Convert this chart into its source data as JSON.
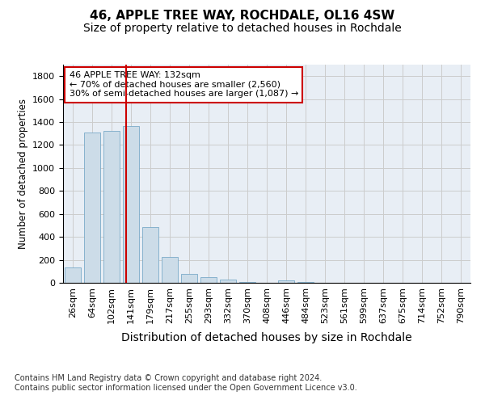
{
  "title1": "46, APPLE TREE WAY, ROCHDALE, OL16 4SW",
  "title2": "Size of property relative to detached houses in Rochdale",
  "xlabel": "Distribution of detached houses by size in Rochdale",
  "ylabel": "Number of detached properties",
  "categories": [
    "26sqm",
    "64sqm",
    "102sqm",
    "141sqm",
    "179sqm",
    "217sqm",
    "255sqm",
    "293sqm",
    "332sqm",
    "370sqm",
    "408sqm",
    "446sqm",
    "484sqm",
    "523sqm",
    "561sqm",
    "599sqm",
    "637sqm",
    "675sqm",
    "714sqm",
    "752sqm",
    "790sqm"
  ],
  "values": [
    135,
    1310,
    1320,
    1365,
    485,
    225,
    80,
    50,
    25,
    10,
    0,
    20,
    10,
    0,
    0,
    0,
    0,
    0,
    0,
    0,
    0
  ],
  "bar_color": "#ccdce8",
  "bar_edge_color": "#7aaac8",
  "vline_color": "#cc0000",
  "annotation_text": "46 APPLE TREE WAY: 132sqm\n← 70% of detached houses are smaller (2,560)\n30% of semi-detached houses are larger (1,087) →",
  "annotation_box_color": "#cc0000",
  "ylim": [
    0,
    1900
  ],
  "yticks": [
    0,
    200,
    400,
    600,
    800,
    1000,
    1200,
    1400,
    1600,
    1800
  ],
  "grid_color": "#cccccc",
  "bg_color": "#e8eef5",
  "footer": "Contains HM Land Registry data © Crown copyright and database right 2024.\nContains public sector information licensed under the Open Government Licence v3.0.",
  "title1_fontsize": 11,
  "title2_fontsize": 10,
  "xlabel_fontsize": 10,
  "ylabel_fontsize": 8.5,
  "tick_fontsize": 8,
  "footer_fontsize": 7
}
